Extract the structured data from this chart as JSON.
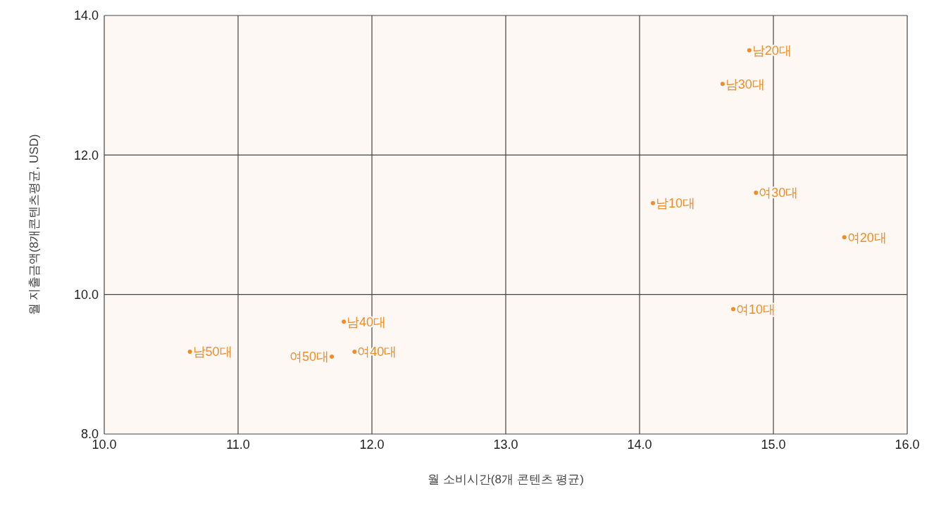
{
  "chart_data": {
    "type": "scatter",
    "xlabel": "월 소비시간(8개 콘텐츠 평균)",
    "ylabel": "월 지출금액(8개콘텐츠평균, USD)",
    "x": [
      14.82,
      14.62,
      14.1,
      14.87,
      15.53,
      14.7,
      11.79,
      11.87,
      11.7,
      10.64
    ],
    "series": [
      {
        "color": "#f28c28",
        "values": [
          13.5,
          13.02,
          11.31,
          11.46,
          10.82,
          9.79,
          9.61,
          9.18,
          9.11,
          9.18
        ]
      }
    ],
    "xlim": [
      10,
      16
    ],
    "xticks": [
      {
        "value": 10,
        "label": "10.0"
      },
      {
        "value": 11,
        "label": "11.0"
      },
      {
        "value": 12,
        "label": "12.0"
      },
      {
        "value": 13,
        "label": "13.0"
      },
      {
        "value": 14,
        "label": "14.0"
      },
      {
        "value": 15,
        "label": "15.0"
      },
      {
        "value": 16,
        "label": "16.0"
      }
    ],
    "ylim": [
      8,
      14
    ],
    "yticks": [
      {
        "value": 8,
        "label": "8.0"
      },
      {
        "value": 10,
        "label": "10.0"
      },
      {
        "value": 12,
        "label": "12.0"
      },
      {
        "value": 14,
        "label": "14.0"
      }
    ],
    "grid": true,
    "marker": "circle",
    "annotations": [
      {
        "text": "남20대",
        "x": 14.82,
        "y": 13.5
      },
      {
        "text": "남30대",
        "x": 14.62,
        "y": 13.02
      },
      {
        "text": "남10대",
        "x": 14.1,
        "y": 11.31
      },
      {
        "text": "여30대",
        "x": 14.87,
        "y": 11.46
      },
      {
        "text": "여20대",
        "x": 15.53,
        "y": 10.82
      },
      {
        "text": "여10대",
        "x": 14.7,
        "y": 9.79
      },
      {
        "text": "남40대",
        "x": 11.79,
        "y": 9.61
      },
      {
        "text": "여40대",
        "x": 11.87,
        "y": 9.18
      },
      {
        "text": "여50대",
        "x": 11.7,
        "y": 9.11
      },
      {
        "text": "남50대",
        "x": 10.64,
        "y": 9.18
      }
    ]
  }
}
